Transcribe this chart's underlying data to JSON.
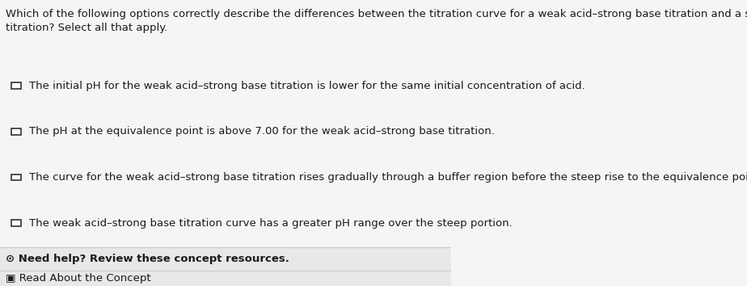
{
  "question_text": "Which of the following options correctly describe the differences between the titration curve for a weak acid–strong base titration and a strong acid–strong base\ntitration? Select all that apply.",
  "options": [
    "The initial pH for the weak acid–strong base titration is lower for the same initial concentration of acid.",
    "The pH at the equivalence point is above 7.00 for the weak acid–strong base titration.",
    "The curve for the weak acid–strong base titration rises gradually through a buffer region before the steep rise to the equivalence point.",
    "The weak acid–strong base titration curve has a greater pH range over the steep portion."
  ],
  "footer_items": [
    {
      "icon": "⊙",
      "text": "Need help? Review these concept resources.",
      "bold": true
    },
    {
      "icon": "▣",
      "text": "Read About the Concept",
      "bold": false
    }
  ],
  "question_fontsize": 9.5,
  "option_fontsize": 9.5,
  "footer_fontsize": 9.5,
  "text_color": "#1a1a1a",
  "footer_bg_color": "#e8e8e8",
  "divider_color": "#cccccc",
  "checkbox_color": "#333333",
  "main_bg_color": "#f5f5f5"
}
